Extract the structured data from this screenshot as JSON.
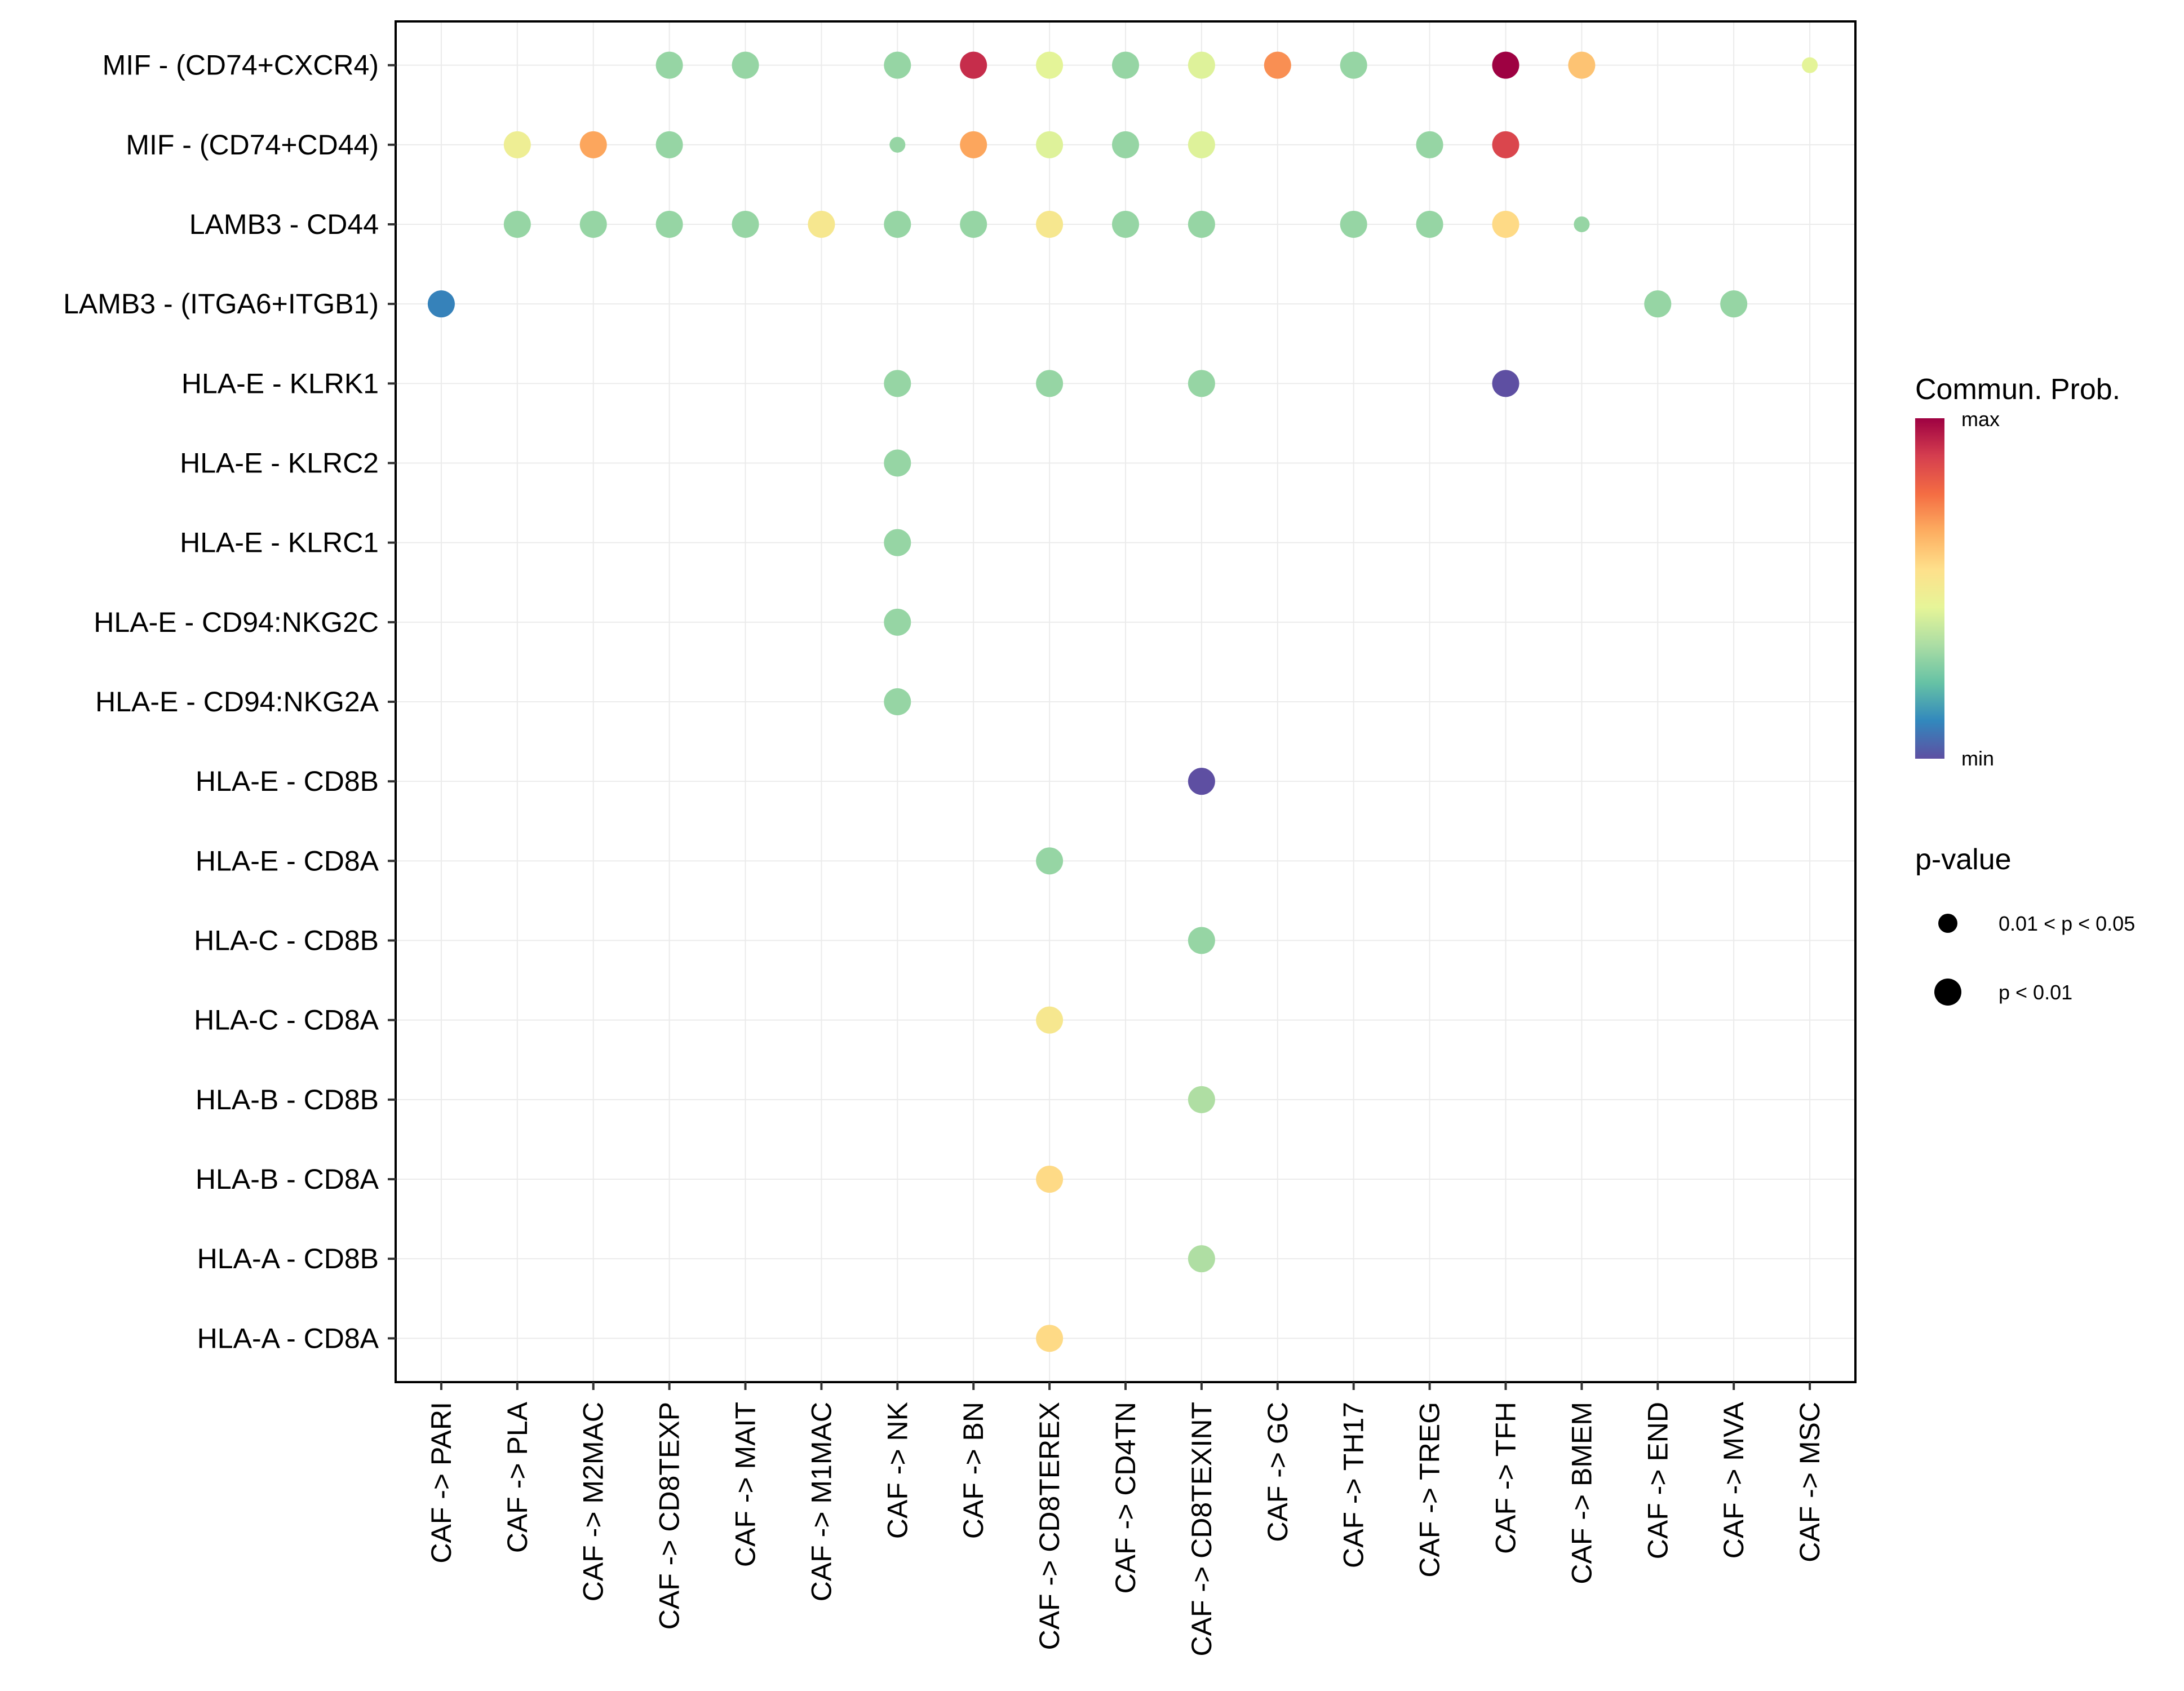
{
  "chart_data": {
    "type": "scatter",
    "subtype": "dot-matrix",
    "title": "",
    "xlabel": "",
    "ylabel": "",
    "grid": true,
    "x_categories": [
      "CAF -> PARI",
      "CAF -> PLA",
      "CAF -> M2MAC",
      "CAF -> CD8TEXP",
      "CAF -> MAIT",
      "CAF -> M1MAC",
      "CAF -> NK",
      "CAF -> BN",
      "CAF -> CD8TEREX",
      "CAF -> CD4TN",
      "CAF -> CD8TEXINT",
      "CAF -> GC",
      "CAF -> TH17",
      "CAF -> TREG",
      "CAF -> TFH",
      "CAF -> BMEM",
      "CAF -> END",
      "CAF -> MVA",
      "CAF -> MSC"
    ],
    "y_categories": [
      "MIF - (CD74+CXCR4)",
      "MIF - (CD74+CD44)",
      "LAMB3 - CD44",
      "LAMB3 - (ITGA6+ITGB1)",
      "HLA-E - KLRK1",
      "HLA-E - KLRC2",
      "HLA-E - KLRC1",
      "HLA-E - CD94:NKG2C",
      "HLA-E - CD94:NKG2A",
      "HLA-E - CD8B",
      "HLA-E - CD8A",
      "HLA-C - CD8B",
      "HLA-C - CD8A",
      "HLA-B - CD8B",
      "HLA-B - CD8A",
      "HLA-A - CD8B",
      "HLA-A - CD8A"
    ],
    "points": [
      {
        "y": "MIF - (CD74+CXCR4)",
        "x": "CAF -> CD8TEXP",
        "prob": 0.3,
        "pval": "p < 0.01"
      },
      {
        "y": "MIF - (CD74+CXCR4)",
        "x": "CAF -> MAIT",
        "prob": 0.3,
        "pval": "p < 0.01"
      },
      {
        "y": "MIF - (CD74+CXCR4)",
        "x": "CAF -> NK",
        "prob": 0.3,
        "pval": "p < 0.01"
      },
      {
        "y": "MIF - (CD74+CXCR4)",
        "x": "CAF -> BN",
        "prob": 0.92,
        "pval": "p < 0.01"
      },
      {
        "y": "MIF - (CD74+CXCR4)",
        "x": "CAF -> CD8TEREX",
        "prob": 0.44,
        "pval": "p < 0.01"
      },
      {
        "y": "MIF - (CD74+CXCR4)",
        "x": "CAF -> CD4TN",
        "prob": 0.3,
        "pval": "p < 0.01"
      },
      {
        "y": "MIF - (CD74+CXCR4)",
        "x": "CAF -> CD8TEXINT",
        "prob": 0.43,
        "pval": "p < 0.01"
      },
      {
        "y": "MIF - (CD74+CXCR4)",
        "x": "CAF -> GC",
        "prob": 0.72,
        "pval": "p < 0.01"
      },
      {
        "y": "MIF - (CD74+CXCR4)",
        "x": "CAF -> TH17",
        "prob": 0.3,
        "pval": "p < 0.01"
      },
      {
        "y": "MIF - (CD74+CXCR4)",
        "x": "CAF -> TFH",
        "prob": 1.0,
        "pval": "p < 0.01"
      },
      {
        "y": "MIF - (CD74+CXCR4)",
        "x": "CAF -> BMEM",
        "prob": 0.62,
        "pval": "p < 0.01"
      },
      {
        "y": "MIF - (CD74+CXCR4)",
        "x": "CAF -> MSC",
        "prob": 0.44,
        "pval": "0.01 < p < 0.05"
      },
      {
        "y": "MIF - (CD74+CD44)",
        "x": "CAF -> PLA",
        "prob": 0.48,
        "pval": "p < 0.01"
      },
      {
        "y": "MIF - (CD74+CD44)",
        "x": "CAF -> M2MAC",
        "prob": 0.68,
        "pval": "p < 0.01"
      },
      {
        "y": "MIF - (CD74+CD44)",
        "x": "CAF -> CD8TEXP",
        "prob": 0.3,
        "pval": "p < 0.01"
      },
      {
        "y": "MIF - (CD74+CD44)",
        "x": "CAF -> NK",
        "prob": 0.3,
        "pval": "0.01 < p < 0.05"
      },
      {
        "y": "MIF - (CD74+CD44)",
        "x": "CAF -> BN",
        "prob": 0.68,
        "pval": "p < 0.01"
      },
      {
        "y": "MIF - (CD74+CD44)",
        "x": "CAF -> CD8TEREX",
        "prob": 0.43,
        "pval": "p < 0.01"
      },
      {
        "y": "MIF - (CD74+CD44)",
        "x": "CAF -> CD4TN",
        "prob": 0.3,
        "pval": "p < 0.01"
      },
      {
        "y": "MIF - (CD74+CD44)",
        "x": "CAF -> CD8TEXINT",
        "prob": 0.43,
        "pval": "p < 0.01"
      },
      {
        "y": "MIF - (CD74+CD44)",
        "x": "CAF -> TREG",
        "prob": 0.3,
        "pval": "p < 0.01"
      },
      {
        "y": "MIF - (CD74+CD44)",
        "x": "CAF -> TFH",
        "prob": 0.87,
        "pval": "p < 0.01"
      },
      {
        "y": "LAMB3 - CD44",
        "x": "CAF -> PLA",
        "prob": 0.3,
        "pval": "p < 0.01"
      },
      {
        "y": "LAMB3 - CD44",
        "x": "CAF -> M2MAC",
        "prob": 0.3,
        "pval": "p < 0.01"
      },
      {
        "y": "LAMB3 - CD44",
        "x": "CAF -> CD8TEXP",
        "prob": 0.3,
        "pval": "p < 0.01"
      },
      {
        "y": "LAMB3 - CD44",
        "x": "CAF -> MAIT",
        "prob": 0.3,
        "pval": "p < 0.01"
      },
      {
        "y": "LAMB3 - CD44",
        "x": "CAF -> M1MAC",
        "prob": 0.52,
        "pval": "p < 0.01"
      },
      {
        "y": "LAMB3 - CD44",
        "x": "CAF -> NK",
        "prob": 0.3,
        "pval": "p < 0.01"
      },
      {
        "y": "LAMB3 - CD44",
        "x": "CAF -> BN",
        "prob": 0.3,
        "pval": "p < 0.01"
      },
      {
        "y": "LAMB3 - CD44",
        "x": "CAF -> CD8TEREX",
        "prob": 0.52,
        "pval": "p < 0.01"
      },
      {
        "y": "LAMB3 - CD44",
        "x": "CAF -> CD4TN",
        "prob": 0.3,
        "pval": "p < 0.01"
      },
      {
        "y": "LAMB3 - CD44",
        "x": "CAF -> CD8TEXINT",
        "prob": 0.3,
        "pval": "p < 0.01"
      },
      {
        "y": "LAMB3 - CD44",
        "x": "CAF -> TH17",
        "prob": 0.3,
        "pval": "p < 0.01"
      },
      {
        "y": "LAMB3 - CD44",
        "x": "CAF -> TREG",
        "prob": 0.3,
        "pval": "p < 0.01"
      },
      {
        "y": "LAMB3 - CD44",
        "x": "CAF -> TFH",
        "prob": 0.57,
        "pval": "p < 0.01"
      },
      {
        "y": "LAMB3 - CD44",
        "x": "CAF -> BMEM",
        "prob": 0.3,
        "pval": "0.01 < p < 0.05"
      },
      {
        "y": "LAMB3 - (ITGA6+ITGB1)",
        "x": "CAF -> PARI",
        "prob": 0.1,
        "pval": "p < 0.01"
      },
      {
        "y": "LAMB3 - (ITGA6+ITGB1)",
        "x": "CAF -> END",
        "prob": 0.3,
        "pval": "p < 0.01"
      },
      {
        "y": "LAMB3 - (ITGA6+ITGB1)",
        "x": "CAF -> MVA",
        "prob": 0.3,
        "pval": "p < 0.01"
      },
      {
        "y": "HLA-E - KLRK1",
        "x": "CAF -> NK",
        "prob": 0.3,
        "pval": "p < 0.01"
      },
      {
        "y": "HLA-E - KLRK1",
        "x": "CAF -> CD8TEREX",
        "prob": 0.3,
        "pval": "p < 0.01"
      },
      {
        "y": "HLA-E - KLRK1",
        "x": "CAF -> CD8TEXINT",
        "prob": 0.3,
        "pval": "p < 0.01"
      },
      {
        "y": "HLA-E - KLRK1",
        "x": "CAF -> TFH",
        "prob": 0.0,
        "pval": "p < 0.01"
      },
      {
        "y": "HLA-E - KLRC2",
        "x": "CAF -> NK",
        "prob": 0.3,
        "pval": "p < 0.01"
      },
      {
        "y": "HLA-E - KLRC1",
        "x": "CAF -> NK",
        "prob": 0.3,
        "pval": "p < 0.01"
      },
      {
        "y": "HLA-E - CD94:NKG2C",
        "x": "CAF -> NK",
        "prob": 0.3,
        "pval": "p < 0.01"
      },
      {
        "y": "HLA-E - CD94:NKG2A",
        "x": "CAF -> NK",
        "prob": 0.3,
        "pval": "p < 0.01"
      },
      {
        "y": "HLA-E - CD8B",
        "x": "CAF -> CD8TEXINT",
        "prob": 0.0,
        "pval": "p < 0.01"
      },
      {
        "y": "HLA-E - CD8A",
        "x": "CAF -> CD8TEREX",
        "prob": 0.3,
        "pval": "p < 0.01"
      },
      {
        "y": "HLA-C - CD8B",
        "x": "CAF -> CD8TEXINT",
        "prob": 0.3,
        "pval": "p < 0.01"
      },
      {
        "y": "HLA-C - CD8A",
        "x": "CAF -> CD8TEREX",
        "prob": 0.52,
        "pval": "p < 0.01"
      },
      {
        "y": "HLA-B - CD8B",
        "x": "CAF -> CD8TEXINT",
        "prob": 0.34,
        "pval": "p < 0.01"
      },
      {
        "y": "HLA-B - CD8A",
        "x": "CAF -> CD8TEREX",
        "prob": 0.57,
        "pval": "p < 0.01"
      },
      {
        "y": "HLA-A - CD8B",
        "x": "CAF -> CD8TEXINT",
        "prob": 0.34,
        "pval": "p < 0.01"
      },
      {
        "y": "HLA-A - CD8A",
        "x": "CAF -> CD8TEREX",
        "prob": 0.57,
        "pval": "p < 0.01"
      }
    ],
    "color_scale": {
      "title": "Commun. Prob.",
      "max_label": "max",
      "min_label": "min",
      "stops": [
        "#5E4FA2",
        "#3288BD",
        "#66C2A5",
        "#ABDDA4",
        "#E6F598",
        "#FEE08B",
        "#FDAE61",
        "#F46D43",
        "#D53E4F",
        "#9E0142"
      ]
    },
    "size_legend": {
      "title": "p-value",
      "entries": [
        "0.01 < p < 0.05",
        "p < 0.01"
      ]
    },
    "legend_position": "right"
  }
}
